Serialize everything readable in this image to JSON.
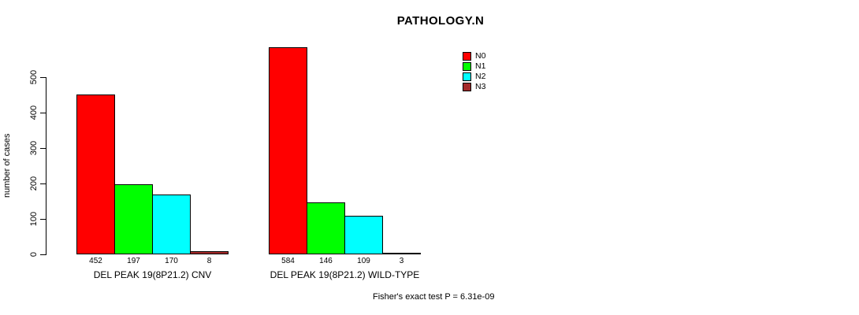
{
  "chart_data": {
    "type": "bar",
    "title": "PATHOLOGY.N",
    "ylabel": "number of cases",
    "xlabel": "",
    "ylim": [
      0,
      500
    ],
    "yticks": [
      0,
      100,
      200,
      300,
      400,
      500
    ],
    "grid": false,
    "legend_position": "top-right",
    "categories": [
      "DEL PEAK 19(8P21.2) CNV",
      "DEL PEAK 19(8P21.2) WILD-TYPE"
    ],
    "series": [
      {
        "name": "N0",
        "color": "#FF0000",
        "values": [
          452,
          584
        ]
      },
      {
        "name": "N1",
        "color": "#00FF00",
        "values": [
          197,
          146
        ]
      },
      {
        "name": "N2",
        "color": "#00FFFF",
        "values": [
          170,
          109
        ]
      },
      {
        "name": "N3",
        "color": "#A52A2A",
        "values": [
          8,
          3
        ]
      }
    ],
    "annotation": "Fisher's exact test P = 6.31e-09"
  }
}
